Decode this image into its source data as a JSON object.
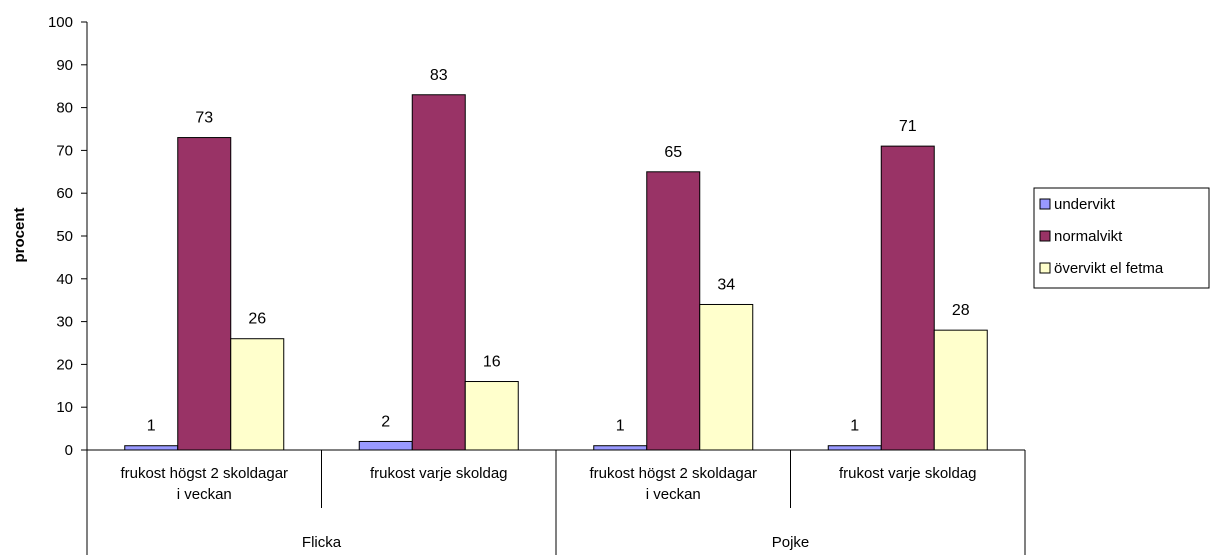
{
  "chart_data": {
    "type": "bar",
    "ylabel": "procent",
    "xlabel": "",
    "title": "",
    "ylim": [
      0,
      100
    ],
    "yticks": [
      0,
      10,
      20,
      30,
      40,
      50,
      60,
      70,
      80,
      90,
      100
    ],
    "grid": false,
    "legend_position": "right",
    "categories": [
      {
        "label": "frukost högst 2 skoldagar i veckan",
        "lines": [
          "frukost högst 2 skoldagar",
          "i veckan"
        ],
        "group": "Flicka"
      },
      {
        "label": "frukost varje skoldag",
        "lines": [
          "frukost varje skoldag"
        ],
        "group": "Flicka"
      },
      {
        "label": "frukost högst 2 skoldagar i veckan",
        "lines": [
          "frukost högst 2 skoldagar",
          "i veckan"
        ],
        "group": "Pojke"
      },
      {
        "label": "frukost varje skoldag",
        "lines": [
          "frukost varje skoldag"
        ],
        "group": "Pojke"
      }
    ],
    "groups": [
      "Flicka",
      "Pojke"
    ],
    "series": [
      {
        "name": "undervikt",
        "color": "#9999FF",
        "values": [
          1,
          2,
          1,
          1
        ]
      },
      {
        "name": "normalvikt",
        "color": "#993366",
        "values": [
          73,
          83,
          65,
          71
        ]
      },
      {
        "name": "övervikt el fetma",
        "color": "#FFFFCC",
        "values": [
          26,
          16,
          34,
          28
        ]
      }
    ]
  }
}
